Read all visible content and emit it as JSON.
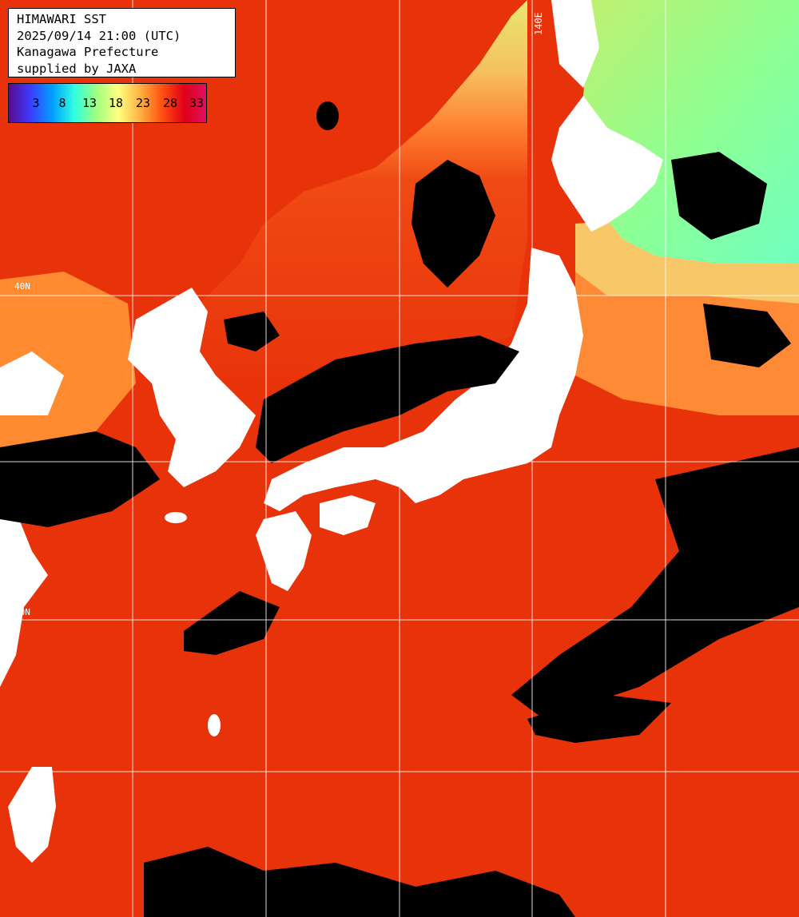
{
  "title_block": {
    "line1": "HIMAWARI SST",
    "line2": "2025/09/14 21:00 (UTC)",
    "line3": "Kanagawa Prefecture",
    "line4": "supplied by JAXA"
  },
  "colorbar": {
    "ticks": [
      "3",
      "8",
      "13",
      "18",
      "23",
      "28",
      "33"
    ],
    "stops": [
      "#5a0a8c",
      "#3c3cff",
      "#00a0ff",
      "#30ffe0",
      "#a0ff80",
      "#ffff80",
      "#ffb040",
      "#ff5010",
      "#e00018",
      "#e01060"
    ]
  },
  "graticule": {
    "lon_label": "140E",
    "lat_labels": [
      "40N",
      "30N"
    ]
  },
  "colors": {
    "land": "#ffffff",
    "cloud": "#000000",
    "warm_sea": "#e8320a",
    "mid_sea": "#ff9a3c",
    "cool_sea": "#f5e080",
    "cold_sea": "#90ff90"
  }
}
